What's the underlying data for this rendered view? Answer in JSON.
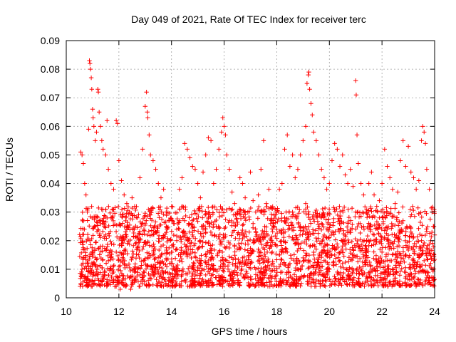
{
  "chart_data": {
    "type": "scatter",
    "title": "Day 049 of 2021, Rate Of TEC Index for receiver terc",
    "xlabel": "GPS time / hours",
    "ylabel": "ROTI / TECUs",
    "xlim": [
      10,
      24
    ],
    "ylim": [
      0,
      0.09
    ],
    "x_ticks": [
      10,
      12,
      14,
      16,
      18,
      20,
      22,
      24
    ],
    "x_tick_labels": [
      "10",
      "12",
      "14",
      "16",
      "18",
      "20",
      "22",
      "24"
    ],
    "y_ticks": [
      0,
      0.01,
      0.02,
      0.03,
      0.04,
      0.05,
      0.06,
      0.07,
      0.08,
      0.09
    ],
    "y_tick_labels": [
      "0",
      "0.01",
      "0.02",
      "0.03",
      "0.04",
      "0.05",
      "0.06",
      "0.07",
      "0.08",
      "0.09"
    ],
    "grid": true,
    "marker": "+",
    "point_color": "#ff0000",
    "series": [
      {
        "name": "ROTI",
        "points": [
          [
            10.55,
            0.051
          ],
          [
            10.6,
            0.05
          ],
          [
            10.65,
            0.047
          ],
          [
            10.7,
            0.04
          ],
          [
            10.75,
            0.036
          ],
          [
            10.8,
            0.03
          ],
          [
            10.85,
            0.059
          ],
          [
            10.88,
            0.083
          ],
          [
            10.9,
            0.082
          ],
          [
            10.92,
            0.08
          ],
          [
            10.95,
            0.077
          ],
          [
            10.97,
            0.073
          ],
          [
            11.0,
            0.066
          ],
          [
            11.02,
            0.063
          ],
          [
            11.05,
            0.06
          ],
          [
            11.1,
            0.055
          ],
          [
            11.15,
            0.058
          ],
          [
            11.2,
            0.073
          ],
          [
            11.22,
            0.072
          ],
          [
            11.25,
            0.065
          ],
          [
            11.3,
            0.06
          ],
          [
            11.35,
            0.055
          ],
          [
            11.4,
            0.052
          ],
          [
            11.5,
            0.05
          ],
          [
            11.55,
            0.062
          ],
          [
            11.6,
            0.045
          ],
          [
            11.7,
            0.04
          ],
          [
            11.8,
            0.038
          ],
          [
            11.9,
            0.062
          ],
          [
            11.95,
            0.061
          ],
          [
            12.0,
            0.048
          ],
          [
            12.1,
            0.041
          ],
          [
            12.2,
            0.036
          ],
          [
            12.3,
            0.033
          ],
          [
            12.4,
            0.03
          ],
          [
            12.5,
            0.035
          ],
          [
            12.6,
            0.032
          ],
          [
            12.7,
            0.028
          ],
          [
            12.8,
            0.042
          ],
          [
            12.9,
            0.052
          ],
          [
            13.0,
            0.067
          ],
          [
            13.05,
            0.072
          ],
          [
            13.08,
            0.065
          ],
          [
            13.1,
            0.063
          ],
          [
            13.15,
            0.057
          ],
          [
            13.2,
            0.05
          ],
          [
            13.3,
            0.048
          ],
          [
            13.4,
            0.045
          ],
          [
            13.5,
            0.04
          ],
          [
            13.6,
            0.035
          ],
          [
            13.7,
            0.038
          ],
          [
            13.8,
            0.03
          ],
          [
            13.9,
            0.027
          ],
          [
            14.0,
            0.032
          ],
          [
            14.1,
            0.026
          ],
          [
            14.2,
            0.024
          ],
          [
            14.3,
            0.038
          ],
          [
            14.4,
            0.042
          ],
          [
            14.5,
            0.054
          ],
          [
            14.6,
            0.052
          ],
          [
            14.7,
            0.049
          ],
          [
            14.8,
            0.046
          ],
          [
            14.9,
            0.045
          ],
          [
            15.0,
            0.04
          ],
          [
            15.1,
            0.035
          ],
          [
            15.2,
            0.044
          ],
          [
            15.3,
            0.05
          ],
          [
            15.4,
            0.056
          ],
          [
            15.5,
            0.055
          ],
          [
            15.6,
            0.04
          ],
          [
            15.7,
            0.045
          ],
          [
            15.8,
            0.052
          ],
          [
            15.9,
            0.058
          ],
          [
            15.95,
            0.063
          ],
          [
            16.0,
            0.06
          ],
          [
            16.05,
            0.057
          ],
          [
            16.1,
            0.05
          ],
          [
            16.2,
            0.045
          ],
          [
            16.3,
            0.037
          ],
          [
            16.4,
            0.033
          ],
          [
            16.5,
            0.03
          ],
          [
            16.6,
            0.042
          ],
          [
            16.7,
            0.04
          ],
          [
            16.8,
            0.035
          ],
          [
            16.9,
            0.03
          ],
          [
            17.0,
            0.044
          ],
          [
            17.1,
            0.034
          ],
          [
            17.2,
            0.03
          ],
          [
            17.3,
            0.036
          ],
          [
            17.4,
            0.045
          ],
          [
            17.5,
            0.055
          ],
          [
            17.6,
            0.033
          ],
          [
            17.7,
            0.038
          ],
          [
            17.8,
            0.027
          ],
          [
            17.9,
            0.025
          ],
          [
            18.0,
            0.03
          ],
          [
            18.1,
            0.038
          ],
          [
            18.2,
            0.04
          ],
          [
            18.3,
            0.052
          ],
          [
            18.4,
            0.057
          ],
          [
            18.5,
            0.046
          ],
          [
            18.6,
            0.05
          ],
          [
            18.7,
            0.042
          ],
          [
            18.8,
            0.045
          ],
          [
            18.9,
            0.05
          ],
          [
            19.0,
            0.055
          ],
          [
            19.1,
            0.06
          ],
          [
            19.15,
            0.075
          ],
          [
            19.2,
            0.078
          ],
          [
            19.22,
            0.079
          ],
          [
            19.25,
            0.073
          ],
          [
            19.3,
            0.068
          ],
          [
            19.35,
            0.064
          ],
          [
            19.4,
            0.058
          ],
          [
            19.5,
            0.055
          ],
          [
            19.6,
            0.05
          ],
          [
            19.7,
            0.045
          ],
          [
            19.8,
            0.042
          ],
          [
            19.9,
            0.038
          ],
          [
            20.0,
            0.04
          ],
          [
            20.1,
            0.048
          ],
          [
            20.2,
            0.054
          ],
          [
            20.3,
            0.052
          ],
          [
            20.4,
            0.046
          ],
          [
            20.5,
            0.05
          ],
          [
            20.6,
            0.043
          ],
          [
            20.7,
            0.04
          ],
          [
            20.8,
            0.045
          ],
          [
            20.9,
            0.039
          ],
          [
            21.0,
            0.076
          ],
          [
            21.02,
            0.071
          ],
          [
            21.05,
            0.057
          ],
          [
            21.1,
            0.047
          ],
          [
            21.2,
            0.04
          ],
          [
            21.3,
            0.036
          ],
          [
            21.4,
            0.03
          ],
          [
            21.5,
            0.04
          ],
          [
            21.6,
            0.044
          ],
          [
            21.7,
            0.036
          ],
          [
            21.8,
            0.032
          ],
          [
            21.9,
            0.034
          ],
          [
            22.0,
            0.04
          ],
          [
            22.1,
            0.052
          ],
          [
            22.2,
            0.046
          ],
          [
            22.3,
            0.042
          ],
          [
            22.4,
            0.038
          ],
          [
            22.5,
            0.033
          ],
          [
            22.6,
            0.037
          ],
          [
            22.7,
            0.048
          ],
          [
            22.8,
            0.055
          ],
          [
            22.9,
            0.046
          ],
          [
            23.0,
            0.053
          ],
          [
            23.1,
            0.044
          ],
          [
            23.2,
            0.042
          ],
          [
            23.3,
            0.038
          ],
          [
            23.4,
            0.041
          ],
          [
            23.5,
            0.055
          ],
          [
            23.55,
            0.06
          ],
          [
            23.6,
            0.058
          ],
          [
            23.65,
            0.054
          ],
          [
            23.7,
            0.045
          ],
          [
            23.8,
            0.038
          ],
          [
            23.9,
            0.03
          ],
          [
            23.95,
            0.025
          ],
          [
            10.6,
            0.01
          ],
          [
            10.7,
            0.006
          ],
          [
            10.8,
            0.012
          ],
          [
            10.9,
            0.02
          ],
          [
            11.0,
            0.015
          ],
          [
            11.1,
            0.025
          ],
          [
            11.2,
            0.011
          ],
          [
            11.3,
            0.018
          ],
          [
            11.4,
            0.008
          ],
          [
            11.5,
            0.022
          ],
          [
            11.6,
            0.013
          ],
          [
            11.7,
            0.028
          ],
          [
            11.8,
            0.009
          ],
          [
            11.9,
            0.016
          ],
          [
            12.0,
            0.005
          ],
          [
            12.1,
            0.019
          ],
          [
            12.2,
            0.012
          ],
          [
            12.3,
            0.024
          ],
          [
            12.4,
            0.007
          ],
          [
            12.5,
            0.014
          ],
          [
            12.6,
            0.01
          ],
          [
            12.7,
            0.021
          ],
          [
            12.8,
            0.008
          ],
          [
            12.9,
            0.017
          ],
          [
            13.0,
            0.026
          ],
          [
            13.1,
            0.011
          ],
          [
            13.2,
            0.029
          ],
          [
            13.3,
            0.015
          ],
          [
            13.4,
            0.023
          ],
          [
            13.5,
            0.009
          ],
          [
            13.6,
            0.018
          ],
          [
            13.7,
            0.012
          ],
          [
            13.8,
            0.025
          ],
          [
            13.9,
            0.007
          ],
          [
            14.0,
            0.016
          ],
          [
            14.1,
            0.01
          ],
          [
            14.2,
            0.02
          ],
          [
            14.3,
            0.013
          ],
          [
            14.4,
            0.008
          ],
          [
            14.5,
            0.027
          ],
          [
            14.6,
            0.015
          ],
          [
            14.7,
            0.011
          ],
          [
            14.8,
            0.022
          ],
          [
            14.9,
            0.009
          ],
          [
            15.0,
            0.017
          ],
          [
            15.1,
            0.012
          ],
          [
            15.2,
            0.024
          ],
          [
            15.3,
            0.008
          ],
          [
            15.4,
            0.019
          ],
          [
            15.5,
            0.014
          ],
          [
            15.6,
            0.01
          ],
          [
            15.7,
            0.025
          ],
          [
            15.8,
            0.016
          ],
          [
            15.9,
            0.031
          ],
          [
            16.0,
            0.021
          ],
          [
            16.1,
            0.013
          ],
          [
            16.2,
            0.027
          ],
          [
            16.3,
            0.009
          ],
          [
            16.4,
            0.018
          ],
          [
            16.5,
            0.011
          ],
          [
            16.6,
            0.022
          ],
          [
            16.7,
            0.014
          ],
          [
            16.8,
            0.008
          ],
          [
            16.9,
            0.02
          ],
          [
            17.0,
            0.012
          ],
          [
            17.1,
            0.026
          ],
          [
            17.2,
            0.01
          ],
          [
            17.3,
            0.017
          ],
          [
            17.4,
            0.009
          ],
          [
            17.5,
            0.021
          ],
          [
            17.6,
            0.013
          ],
          [
            17.7,
            0.007
          ],
          [
            17.8,
            0.018
          ],
          [
            17.9,
            0.011
          ],
          [
            18.0,
            0.024
          ],
          [
            18.1,
            0.015
          ],
          [
            18.2,
            0.009
          ],
          [
            18.3,
            0.028
          ],
          [
            18.4,
            0.016
          ],
          [
            18.5,
            0.012
          ],
          [
            18.6,
            0.03
          ],
          [
            18.7,
            0.019
          ],
          [
            18.8,
            0.01
          ],
          [
            18.9,
            0.025
          ],
          [
            19.0,
            0.014
          ],
          [
            19.1,
            0.033
          ],
          [
            19.2,
            0.022
          ],
          [
            19.3,
            0.011
          ],
          [
            19.4,
            0.029
          ],
          [
            19.5,
            0.017
          ],
          [
            19.6,
            0.008
          ],
          [
            19.7,
            0.026
          ],
          [
            19.8,
            0.013
          ],
          [
            19.9,
            0.021
          ],
          [
            20.0,
            0.01
          ],
          [
            20.1,
            0.023
          ],
          [
            20.2,
            0.015
          ],
          [
            20.3,
            0.009
          ],
          [
            20.4,
            0.027
          ],
          [
            20.5,
            0.012
          ],
          [
            20.6,
            0.019
          ],
          [
            20.7,
            0.008
          ],
          [
            20.8,
            0.024
          ],
          [
            20.9,
            0.014
          ],
          [
            21.0,
            0.03
          ],
          [
            21.1,
            0.018
          ],
          [
            21.2,
            0.01
          ],
          [
            21.3,
            0.025
          ],
          [
            21.4,
            0.013
          ],
          [
            21.5,
            0.02
          ],
          [
            21.6,
            0.007
          ],
          [
            21.7,
            0.022
          ],
          [
            21.8,
            0.011
          ],
          [
            21.9,
            0.028
          ],
          [
            22.0,
            0.016
          ],
          [
            22.1,
            0.009
          ],
          [
            22.2,
            0.024
          ],
          [
            22.3,
            0.013
          ],
          [
            22.4,
            0.019
          ],
          [
            22.5,
            0.006
          ],
          [
            22.6,
            0.021
          ],
          [
            22.7,
            0.012
          ],
          [
            22.8,
            0.027
          ],
          [
            22.9,
            0.015
          ],
          [
            23.0,
            0.008
          ],
          [
            23.1,
            0.023
          ],
          [
            23.2,
            0.011
          ],
          [
            23.3,
            0.018
          ],
          [
            23.4,
            0.009
          ],
          [
            23.5,
            0.02
          ],
          [
            23.6,
            0.013
          ],
          [
            23.7,
            0.007
          ],
          [
            23.8,
            0.016
          ],
          [
            23.9,
            0.01
          ],
          [
            24.0,
            0.022
          ],
          [
            23.95,
            0.006
          ],
          [
            23.85,
            0.012
          ],
          [
            23.75,
            0.005
          ],
          [
            11.85,
            0.004
          ],
          [
            12.45,
            0.003
          ],
          [
            12.05,
            0.003
          ],
          [
            13.95,
            0.004
          ],
          [
            16.35,
            0.005
          ],
          [
            19.65,
            0.004
          ]
        ]
      }
    ],
    "dense_band": {
      "x_range": [
        10.5,
        24
      ],
      "y_range": [
        0.004,
        0.032
      ],
      "description": "dense cloud of points between roughly 0.005 and 0.03 across the full time span"
    }
  }
}
